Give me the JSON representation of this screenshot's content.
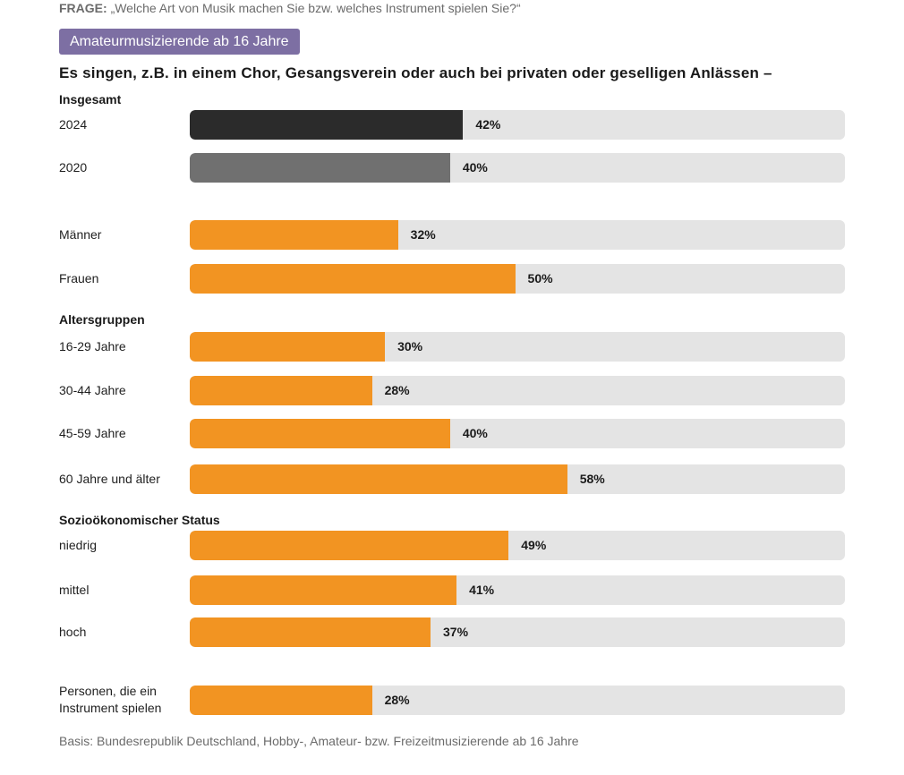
{
  "question": {
    "label": "FRAGE:",
    "text": "„Welche Art von Musik machen Sie bzw. welches Instrument spielen Sie?“"
  },
  "badge": "Amateurmusizierende ab 16 Jahre",
  "subtitle": "Es singen, z.B. in einem Chor, Gesangsverein oder auch bei privaten oder geselligen Anlässen –",
  "basis": "Basis: Bundesrepublik Deutschland, Hobby-, Amateur- bzw. Freizeitmusizierende ab 16 Jahre",
  "colors": {
    "dark": "#2b2b2b",
    "mid": "#707070",
    "orange": "#f29422",
    "track": "#e4e4e4",
    "badge": "#7d6fa3"
  },
  "chart_data": {
    "type": "bar",
    "orientation": "horizontal",
    "title": "Es singen, z.B. in einem Chor, Gesangsverein oder auch bei privaten oder geselligen Anlässen –",
    "unit": "%",
    "xlim": [
      0,
      100
    ],
    "groups": [
      {
        "heading": "Insgesamt",
        "rows": [
          {
            "label": "2024",
            "value": 42,
            "display": "42%",
            "color": "#2b2b2b"
          },
          {
            "label": "2020",
            "value": 40,
            "display": "40%",
            "color": "#707070"
          }
        ]
      },
      {
        "heading": "",
        "rows": [
          {
            "label": "Männer",
            "value": 32,
            "display": "32%",
            "color": "#f29422"
          },
          {
            "label": "Frauen",
            "value": 50,
            "display": "50%",
            "color": "#f29422"
          }
        ]
      },
      {
        "heading": "Altersgruppen",
        "rows": [
          {
            "label": "16-29 Jahre",
            "value": 30,
            "display": "30%",
            "color": "#f29422"
          },
          {
            "label": "30-44 Jahre",
            "value": 28,
            "display": "28%",
            "color": "#f29422"
          },
          {
            "label": "45-59 Jahre",
            "value": 40,
            "display": "40%",
            "color": "#f29422"
          },
          {
            "label": "60 Jahre und älter",
            "value": 58,
            "display": "58%",
            "color": "#f29422"
          }
        ]
      },
      {
        "heading": "Sozioökonomischer Status",
        "rows": [
          {
            "label": "niedrig",
            "value": 49,
            "display": "49%",
            "color": "#f29422"
          },
          {
            "label": "mittel",
            "value": 41,
            "display": "41%",
            "color": "#f29422"
          },
          {
            "label": "hoch",
            "value": 37,
            "display": "37%",
            "color": "#f29422"
          }
        ]
      },
      {
        "heading": "",
        "rows": [
          {
            "label": "Personen,  die ein\nInstrument spielen",
            "value": 28,
            "display": "28%",
            "color": "#f29422"
          }
        ]
      }
    ]
  }
}
